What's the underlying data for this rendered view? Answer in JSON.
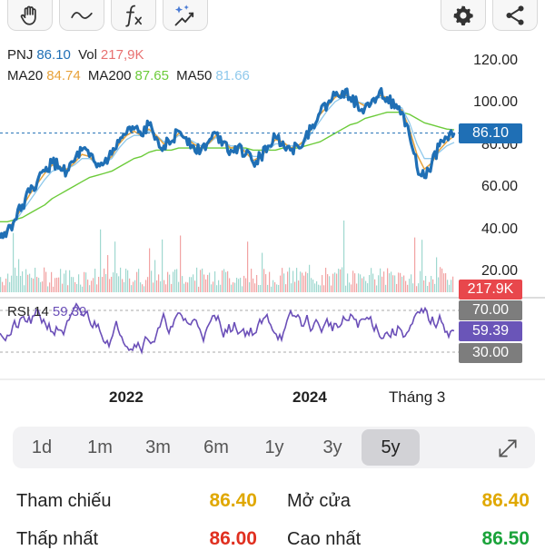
{
  "toolbar": {
    "buttons": [
      {
        "name": "hand-icon"
      },
      {
        "name": "wave-icon"
      },
      {
        "name": "function-icon"
      },
      {
        "name": "magic-trend-icon"
      },
      {
        "name": "gear-icon"
      },
      {
        "name": "share-icon"
      }
    ]
  },
  "legend": {
    "symbol": "PNJ",
    "price": "86.10",
    "vol_label": "Vol",
    "vol_value": "217,9K",
    "ma20_label": "MA20",
    "ma20_value": "84.74",
    "ma200_label": "MA200",
    "ma200_value": "87.65",
    "ma50_label": "MA50",
    "ma50_value": "81.66",
    "rsi_label": "RSI 14",
    "rsi_value": "59.39"
  },
  "colors": {
    "price": "#1f6fb5",
    "vol": "#e87070",
    "ma20": "#e8a23a",
    "ma200": "#6ccb3a",
    "ma50": "#8fc9ec",
    "rsi": "#6b4fb8",
    "vol_tag": "#e8474c",
    "rsi_tag": "#6a55b8",
    "rsi_level_tag": "#7d7d7d",
    "ref": "#e0a800",
    "low": "#e03020",
    "high": "#1aa33a"
  },
  "chart_data": {
    "type": "line",
    "ylim": [
      20,
      120
    ],
    "yticks": [
      "120.00",
      "100.00",
      "80.00",
      "60.00",
      "40.00",
      "20.00"
    ],
    "xticks": [
      "2022",
      "2024",
      "Tháng 3"
    ],
    "current_price": 86.1,
    "current_price_label": "86.10",
    "volume_label": "217.9K",
    "rsi_levels": [
      "70.00",
      "30.00"
    ],
    "rsi_current_label": "59.39",
    "grid": false,
    "series": [
      {
        "name": "PNJ",
        "values": [
          36,
          40,
          45,
          52,
          58,
          63,
          68,
          72,
          70,
          68,
          73,
          78,
          75,
          70,
          72,
          76,
          82,
          86,
          88,
          85,
          90,
          84,
          80,
          82,
          87,
          84,
          80,
          78,
          82,
          86,
          82,
          78,
          80,
          76,
          72,
          75,
          80,
          84,
          82,
          78,
          80,
          84,
          90,
          96,
          100,
          104,
          106,
          103,
          100,
          98,
          102,
          106,
          103,
          98,
          96,
          85,
          70,
          65,
          72,
          80,
          84,
          86
        ]
      },
      {
        "name": "MA20",
        "values": [
          37,
          40,
          45,
          51,
          57,
          62,
          67,
          71,
          70,
          69,
          72,
          76,
          75,
          71,
          72,
          75,
          81,
          85,
          87,
          85,
          88,
          85,
          81,
          82,
          86,
          84,
          81,
          79,
          81,
          85,
          82,
          79,
          80,
          77,
          73,
          75,
          79,
          83,
          82,
          79,
          80,
          83,
          89,
          95,
          99,
          103,
          105,
          103,
          101,
          99,
          101,
          104,
          103,
          99,
          97,
          88,
          76,
          69,
          72,
          78,
          82,
          84.74
        ]
      },
      {
        "name": "MA50",
        "values": [
          38,
          40,
          44,
          49,
          54,
          59,
          64,
          68,
          69,
          69,
          71,
          74,
          74,
          72,
          72,
          74,
          79,
          83,
          85,
          85,
          87,
          85,
          82,
          82,
          85,
          84,
          82,
          80,
          81,
          84,
          82,
          80,
          80,
          78,
          75,
          75,
          78,
          81,
          81,
          80,
          80,
          82,
          87,
          92,
          97,
          101,
          103,
          103,
          101,
          100,
          101,
          103,
          102,
          100,
          98,
          91,
          81,
          74,
          74,
          77,
          80,
          81.66
        ]
      },
      {
        "name": "MA200",
        "values": [
          44,
          44,
          45,
          46,
          48,
          50,
          52,
          55,
          57,
          59,
          61,
          63,
          65,
          66,
          67,
          68,
          70,
          72,
          74,
          75,
          77,
          78,
          78,
          78,
          79,
          79,
          79,
          79,
          79,
          79,
          79,
          79,
          79,
          79,
          78,
          78,
          78,
          78,
          79,
          79,
          79,
          80,
          81,
          82,
          84,
          86,
          88,
          90,
          91,
          93,
          94,
          95,
          96,
          96,
          96,
          95,
          93,
          91,
          90,
          89,
          88,
          87.65
        ]
      }
    ]
  },
  "ranges": [
    {
      "label": "1d",
      "active": false
    },
    {
      "label": "1m",
      "active": false
    },
    {
      "label": "3m",
      "active": false
    },
    {
      "label": "6m",
      "active": false
    },
    {
      "label": "1y",
      "active": false
    },
    {
      "label": "3y",
      "active": false
    },
    {
      "label": "5y",
      "active": true
    }
  ],
  "info": {
    "ref_label": "Tham chiếu",
    "ref_value": "86.40",
    "open_label": "Mở cửa",
    "open_value": "86.40",
    "low_label": "Thấp nhất",
    "low_value": "86.00",
    "high_label": "Cao nhất",
    "high_value": "86.50"
  }
}
